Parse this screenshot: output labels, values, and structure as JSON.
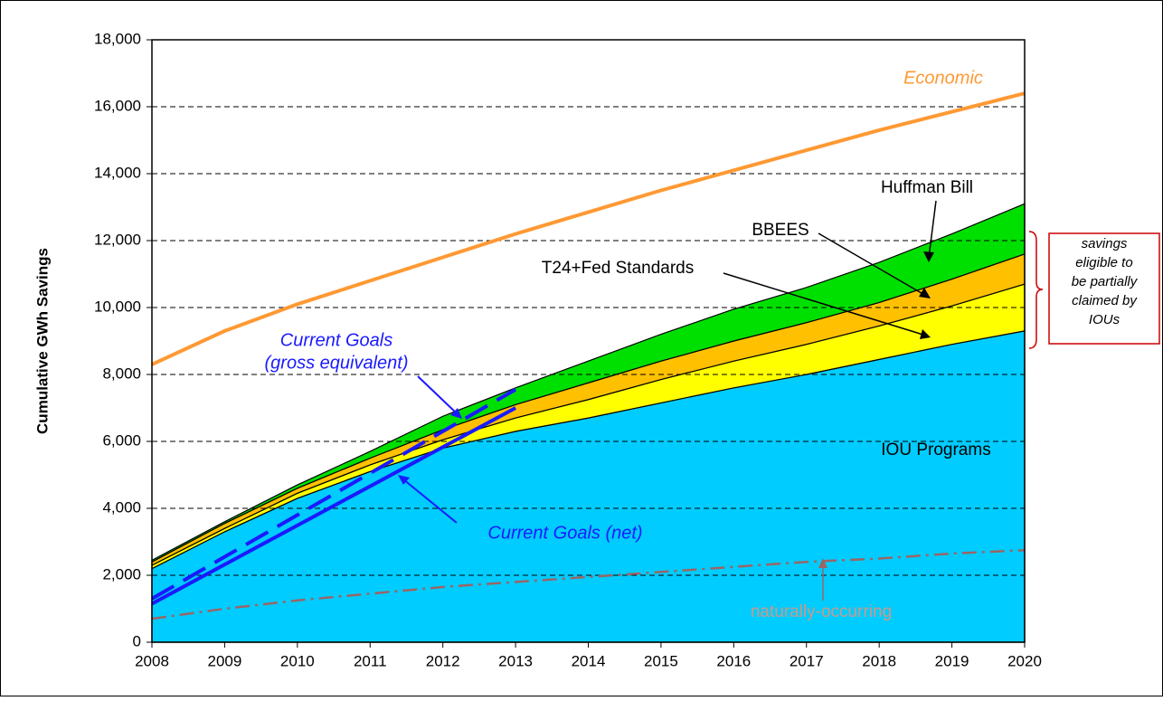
{
  "chart_data": {
    "type": "area",
    "y_label": "Cumulative GWh Savings",
    "x": [
      2008,
      2009,
      2010,
      2011,
      2012,
      2013,
      2014,
      2015,
      2016,
      2017,
      2018,
      2019,
      2020
    ],
    "xlim": [
      2008,
      2020
    ],
    "xticks": [
      2008,
      2009,
      2010,
      2011,
      2012,
      2013,
      2014,
      2015,
      2016,
      2017,
      2018,
      2019,
      2020
    ],
    "ylim": [
      0,
      18000
    ],
    "yticks": [
      0,
      {
        "value": 2000,
        "label": "2,000"
      },
      {
        "value": 4000,
        "label": "4,000"
      },
      {
        "value": 6000,
        "label": "6,000"
      },
      {
        "value": 8000,
        "label": "8,000"
      },
      {
        "value": 10000,
        "label": "10,000"
      },
      {
        "value": 12000,
        "label": "12,000"
      },
      {
        "value": 14000,
        "label": "14,000"
      },
      {
        "value": 16000,
        "label": "16,000"
      },
      {
        "value": 18000,
        "label": "18,000"
      }
    ],
    "grid": true,
    "series": [
      {
        "name": "IOU Programs",
        "kind": "stacked-area",
        "color": "#00ccff",
        "values": [
          2200,
          3300,
          4300,
          5100,
          5800,
          6300,
          6700,
          7150,
          7600,
          8000,
          8450,
          8900,
          9300
        ]
      },
      {
        "name": "T24+Fed Standards",
        "kind": "stacked-area",
        "color": "#ffff00",
        "values": [
          100,
          100,
          150,
          200,
          250,
          400,
          550,
          700,
          800,
          900,
          1000,
          1150,
          1400
        ]
      },
      {
        "name": "BBEES",
        "kind": "stacked-area",
        "color": "#ffc000",
        "values": [
          100,
          150,
          150,
          200,
          300,
          400,
          500,
          550,
          600,
          650,
          700,
          800,
          900
        ]
      },
      {
        "name": "Huffman Bill",
        "kind": "stacked-area",
        "color": "#00e000",
        "values": [
          50,
          50,
          100,
          200,
          400,
          500,
          650,
          800,
          950,
          1050,
          1200,
          1350,
          1500
        ]
      },
      {
        "name": "Economic",
        "kind": "line",
        "style": "solid",
        "color": "#ff9933",
        "values": [
          8300,
          9300,
          10100,
          10800,
          11500,
          12200,
          12850,
          13500,
          14100,
          14700,
          15300,
          15850,
          16400
        ]
      },
      {
        "name": "naturally-occurring",
        "kind": "line",
        "style": "dashdot",
        "color": "#996666",
        "values": [
          700,
          1000,
          1250,
          1450,
          1650,
          1800,
          1950,
          2100,
          2250,
          2400,
          2500,
          2650,
          2750
        ]
      },
      {
        "name": "Current Goals (net)",
        "kind": "line",
        "style": "solid",
        "color": "#1a1aff",
        "values": [
          1150,
          2320,
          3490,
          4660,
          5830,
          7000,
          null,
          null,
          null,
          null,
          null,
          null,
          null
        ]
      },
      {
        "name": "Current Goals (gross equivalent)",
        "kind": "line",
        "style": "dashed",
        "color": "#1a1aff",
        "values": [
          1300,
          2550,
          3800,
          5050,
          6300,
          7550,
          null,
          null,
          null,
          null,
          null,
          null,
          null
        ]
      }
    ],
    "annotations": [
      "Economic",
      "Huffman Bill",
      "BBEES",
      "T24+Fed Standards",
      "IOU Programs",
      "Current Goals",
      "(gross equivalent)",
      "Current Goals (net)",
      "naturally-occurring"
    ],
    "note_box": [
      "savings",
      "eligible to",
      "be partially",
      "claimed by",
      "IOUs"
    ]
  }
}
